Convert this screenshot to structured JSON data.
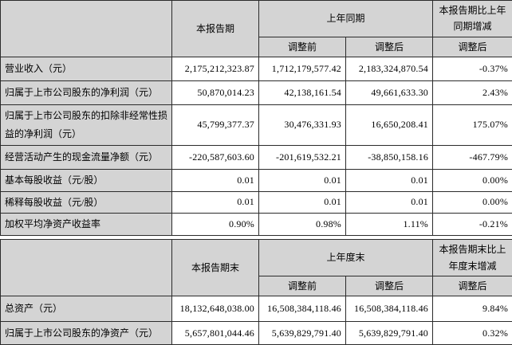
{
  "table1": {
    "header": {
      "current": "本报告期",
      "prior_group": "上年同期",
      "change_group": "本报告期比上年同期增减",
      "sub_before": "调整前",
      "sub_after": "调整后",
      "sub_change": "调整后"
    },
    "rows": [
      {
        "label": "营业收入（元）",
        "current": "2,175,212,323.87",
        "before": "1,712,179,577.42",
        "after": "2,183,324,870.54",
        "change": "-0.37%"
      },
      {
        "label": "归属于上市公司股东的净利润（元）",
        "current": "50,870,014.23",
        "before": "42,138,161.54",
        "after": "49,661,633.30",
        "change": "2.43%"
      },
      {
        "label": "归属于上市公司股东的扣除非经常性损益的净利润（元）",
        "current": "45,799,377.37",
        "before": "30,476,331.93",
        "after": "16,650,208.41",
        "change": "175.07%"
      },
      {
        "label": "经营活动产生的现金流量净额（元）",
        "current": "-220,587,603.60",
        "before": "-201,619,532.21",
        "after": "-38,850,158.16",
        "change": "-467.79%"
      },
      {
        "label": "基本每股收益（元/股）",
        "current": "0.01",
        "before": "0.01",
        "after": "0.01",
        "change": "0.00%"
      },
      {
        "label": "稀释每股收益（元/股）",
        "current": "0.01",
        "before": "0.01",
        "after": "0.01",
        "change": "0.00%"
      },
      {
        "label": "加权平均净资产收益率",
        "current": "0.90%",
        "before": "0.98%",
        "after": "1.11%",
        "change": "-0.21%"
      }
    ]
  },
  "table2": {
    "header": {
      "current": "本报告期末",
      "prior_group": "上年度末",
      "change_group": "本报告期末比上年度末增减",
      "sub_before": "调整前",
      "sub_after": "调整后",
      "sub_change": "调整后"
    },
    "rows": [
      {
        "label": "总资产（元）",
        "current": "18,132,648,038.00",
        "before": "16,508,384,118.46",
        "after": "16,508,384,118.46",
        "change": "9.84%"
      },
      {
        "label": "归属于上市公司股东的净资产（元）",
        "current": "5,657,801,044.46",
        "before": "5,639,829,791.40",
        "after": "5,639,829,791.40",
        "change": "0.32%"
      }
    ]
  },
  "colors": {
    "header_bg": "#d4d4d4",
    "cell_bg": "#ffffff",
    "border": "#2b2b2b",
    "text": "#000000"
  }
}
